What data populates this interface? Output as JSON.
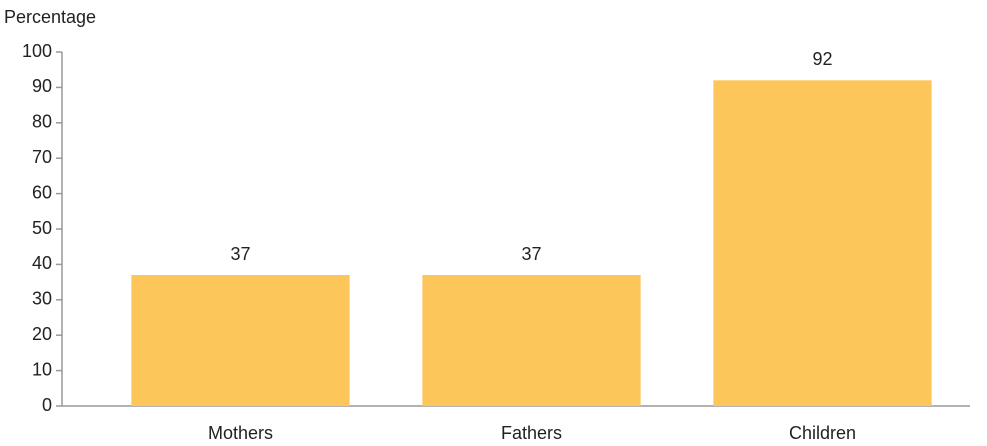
{
  "chart_data": {
    "type": "bar",
    "y_axis_label": "Percentage",
    "categories": [
      "Mothers",
      "Fathers",
      "Children"
    ],
    "values": [
      37,
      37,
      92
    ],
    "color": "#fdc65a",
    "ylim": [
      0,
      100
    ],
    "yticks": [
      0,
      10,
      20,
      30,
      40,
      50,
      60,
      70,
      80,
      90,
      100
    ],
    "grid": false
  }
}
